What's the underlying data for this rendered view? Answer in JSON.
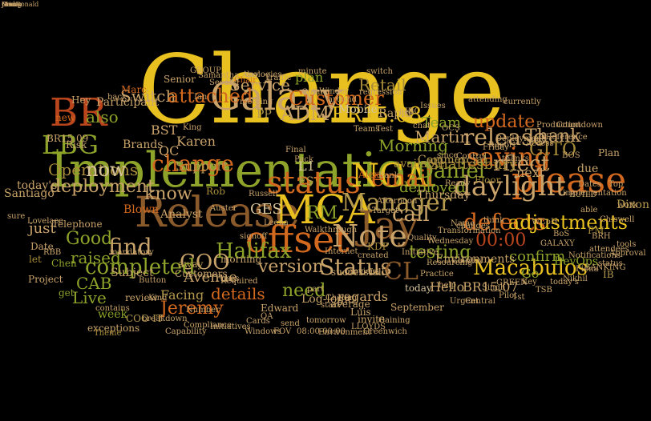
{
  "title": "",
  "palette": {
    "gold": "#e8c020",
    "orange": "#d2691e",
    "olive": "#8ea32a",
    "tan": "#c9a36a",
    "brown": "#8b5a2b",
    "rust": "#b8451c",
    "sand": "#b59a4e",
    "khaki": "#a88c3a",
    "darkred": "#a33a1a",
    "pale": "#d6c39a"
  },
  "words": [
    {
      "text": "Change",
      "color": "gold"
    },
    {
      "text": "Implementation",
      "color": "olive"
    },
    {
      "text": "Release",
      "color": "brown"
    },
    {
      "text": "Galaxy",
      "color": "tan"
    },
    {
      "text": "MCA",
      "color": "gold"
    },
    {
      "text": "please",
      "color": "orange"
    },
    {
      "text": "offset",
      "color": "orange"
    },
    {
      "text": "Jay",
      "color": "brown"
    },
    {
      "text": "daylight",
      "color": "tan"
    },
    {
      "text": "Note",
      "color": "tan"
    },
    {
      "text": "status",
      "color": "orange"
    },
    {
      "text": "Customer",
      "color": "orange"
    },
    {
      "text": "BR",
      "color": "rust"
    },
    {
      "text": "LBG",
      "color": "olive"
    },
    {
      "text": "NGA",
      "color": "gold"
    },
    {
      "text": "Status",
      "color": "tan"
    },
    {
      "text": "Service",
      "color": "tan"
    },
    {
      "text": "Switch",
      "color": "tan"
    },
    {
      "text": "version",
      "color": "tan"
    },
    {
      "text": "Retail",
      "color": "khaki"
    },
    {
      "text": "Manager",
      "color": "sand"
    },
    {
      "text": "saving",
      "color": "orange"
    },
    {
      "text": "defects",
      "color": "orange"
    },
    {
      "text": "email",
      "color": "orange"
    },
    {
      "text": "adjustments",
      "color": "gold"
    },
    {
      "text": "release",
      "color": "tan"
    },
    {
      "text": "rflect",
      "color": "tan"
    },
    {
      "text": "Daniel",
      "color": "olive"
    },
    {
      "text": "BR15.08",
      "color": "gold"
    },
    {
      "text": "ADM",
      "color": "tan"
    },
    {
      "text": "GITO",
      "color": "khaki"
    },
    {
      "text": "change",
      "color": "orange"
    },
    {
      "text": "Macabulos",
      "color": "gold"
    },
    {
      "text": "00:00",
      "color": "rust"
    },
    {
      "text": "Halifax",
      "color": "olive"
    },
    {
      "text": "COO",
      "color": "tan"
    },
    {
      "text": "completed",
      "color": "olive"
    },
    {
      "text": "testing",
      "color": "olive"
    },
    {
      "text": "CL",
      "color": "brown"
    },
    {
      "text": "GES",
      "color": "pale"
    },
    {
      "text": "deployment",
      "color": "tan"
    },
    {
      "text": "Operations",
      "color": "khaki"
    },
    {
      "text": "now",
      "color": "pale"
    },
    {
      "text": "attached",
      "color": "orange"
    },
    {
      "text": "Karen",
      "color": "tan"
    },
    {
      "text": "Thank",
      "color": "tan"
    },
    {
      "text": "update",
      "color": "orange"
    },
    {
      "text": "Team",
      "color": "olive"
    },
    {
      "text": "Morning",
      "color": "olive"
    },
    {
      "text": "Martin",
      "color": "tan"
    },
    {
      "text": "Shaftesbury",
      "color": "khaki"
    },
    {
      "text": "Commercial",
      "color": "sand"
    },
    {
      "text": "deployed",
      "color": "olive"
    },
    {
      "text": "available",
      "color": "khaki"
    },
    {
      "text": "call",
      "color": "tan"
    },
    {
      "text": "RM",
      "color": "olive"
    },
    {
      "text": "L1",
      "color": "pale"
    },
    {
      "text": "FS",
      "color": "sand"
    },
    {
      "text": "know",
      "color": "tan"
    },
    {
      "text": "find",
      "color": "tan"
    },
    {
      "text": "Good",
      "color": "olive"
    },
    {
      "text": "raised",
      "color": "olive"
    },
    {
      "text": "CAB",
      "color": "olive"
    },
    {
      "text": "Live",
      "color": "olive"
    },
    {
      "text": "just",
      "color": "tan"
    },
    {
      "text": "need",
      "color": "olive"
    },
    {
      "text": "details",
      "color": "orange"
    },
    {
      "text": "Jeremy",
      "color": "orange"
    },
    {
      "text": "Facing",
      "color": "sand"
    },
    {
      "text": "Log-logic",
      "color": "tan"
    },
    {
      "text": "regards",
      "color": "tan"
    },
    {
      "text": "confirm",
      "color": "olive"
    },
    {
      "text": "BR15.07",
      "color": "tan"
    },
    {
      "text": "Go",
      "color": "olive"
    },
    {
      "text": "DevOps",
      "color": "olive"
    },
    {
      "text": "next",
      "color": "tan"
    },
    {
      "text": "due",
      "color": "tan"
    },
    {
      "text": "Support",
      "color": "sand"
    },
    {
      "text": "QC",
      "color": "tan"
    },
    {
      "text": "BST",
      "color": "tan"
    },
    {
      "text": "also",
      "color": "olive"
    },
    {
      "text": "new",
      "color": "orange"
    },
    {
      "text": "today's",
      "color": "tan"
    },
    {
      "text": "Santiago",
      "color": "tan"
    },
    {
      "text": "Alex",
      "color": "orange"
    },
    {
      "text": "Mobile",
      "color": "pale"
    },
    {
      "text": "Rapid",
      "color": "tan"
    },
    {
      "text": "plan",
      "color": "olive"
    },
    {
      "text": "PP",
      "color": "sand"
    },
    {
      "text": "KDP",
      "color": "khaki"
    },
    {
      "text": "today",
      "color": "pale"
    },
    {
      "text": "Hello",
      "color": "tan"
    },
    {
      "text": "Analyst",
      "color": "tan"
    },
    {
      "text": "Avenue",
      "color": "tan"
    },
    {
      "text": "Blown",
      "color": "orange"
    },
    {
      "text": "Participant",
      "color": "tan"
    },
    {
      "text": "Telephone",
      "color": "tan"
    },
    {
      "text": "Subject",
      "color": "tan"
    },
    {
      "text": "get",
      "color": "olive"
    },
    {
      "text": "let",
      "color": "khaki"
    },
    {
      "text": "week",
      "color": "olive"
    },
    {
      "text": "Customers",
      "color": "tan"
    },
    {
      "text": "Thursday",
      "color": "tan"
    },
    {
      "text": "Environments",
      "color": "tan"
    },
    {
      "text": "Floor",
      "color": "khaki"
    },
    {
      "text": "Brands",
      "color": "tan"
    },
    {
      "text": "review",
      "color": "tan"
    },
    {
      "text": "Edward",
      "color": "tan"
    },
    {
      "text": "invite",
      "color": "tan"
    },
    {
      "text": "Dixon",
      "color": "sand"
    },
    {
      "text": "IB",
      "color": "sand"
    },
    {
      "text": "PM",
      "color": "khaki"
    },
    {
      "text": "Plan",
      "color": "tan"
    },
    {
      "text": "Hey",
      "color": "tan"
    },
    {
      "text": "Senior",
      "color": "tan"
    },
    {
      "text": "Marc",
      "color": "orange"
    },
    {
      "text": "Rob",
      "color": "khaki"
    },
    {
      "text": "Chen",
      "color": "olive"
    },
    {
      "text": "Project",
      "color": "tan"
    },
    {
      "text": "BR15.09",
      "color": "tan"
    },
    {
      "text": "Date",
      "color": "tan"
    },
    {
      "text": "Risk",
      "color": "tan"
    },
    {
      "text": "away",
      "color": "sand"
    },
    {
      "text": "Luis",
      "color": "tan"
    },
    {
      "text": "average",
      "color": "tan"
    },
    {
      "text": "September",
      "color": "tan"
    },
    {
      "text": "successfully",
      "color": "tan"
    },
    {
      "text": "morning",
      "color": "tan"
    },
    {
      "text": "exceptions",
      "color": "tan"
    },
    {
      "text": "COO-IT",
      "color": "sand"
    },
    {
      "text": "Theme",
      "color": "khaki"
    },
    {
      "text": "Initiatives",
      "color": "tan"
    },
    {
      "text": "Capability",
      "color": "tan"
    },
    {
      "text": "Compliance",
      "color": "tan"
    },
    {
      "text": "Number",
      "color": "tan"
    },
    {
      "text": "breakdown",
      "color": "tan"
    },
    {
      "text": "Kind",
      "color": "tan"
    },
    {
      "text": "Button",
      "color": "tan"
    },
    {
      "text": "Cheung",
      "color": "tan"
    },
    {
      "text": "LLOYDS",
      "color": "tan"
    },
    {
      "text": "King",
      "color": "tan"
    },
    {
      "text": "Chair",
      "color": "orange"
    },
    {
      "text": "day",
      "color": "tan"
    },
    {
      "text": "meeting",
      "color": "tan"
    },
    {
      "text": "Colin",
      "color": "tan"
    },
    {
      "text": "Second",
      "color": "tan"
    },
    {
      "text": "Winder",
      "color": "tan"
    },
    {
      "text": "regression",
      "color": "tan"
    },
    {
      "text": "switch",
      "color": "tan"
    },
    {
      "text": "last",
      "color": "tan"
    },
    {
      "text": "chat",
      "color": "tan"
    },
    {
      "text": "IBC",
      "color": "tan"
    },
    {
      "text": "OCS",
      "color": "tan"
    },
    {
      "text": "BOS",
      "color": "tan"
    },
    {
      "text": "Deployment",
      "color": "tan"
    },
    {
      "text": "currently",
      "color": "tan"
    },
    {
      "text": "Countdown",
      "color": "tan"
    },
    {
      "text": "since",
      "color": "tan"
    },
    {
      "text": "Issues",
      "color": "tan"
    },
    {
      "text": "attending",
      "color": "tan"
    },
    {
      "text": "thanks",
      "color": "tan"
    },
    {
      "text": "implementation",
      "color": "tan"
    },
    {
      "text": "Top",
      "color": "tan"
    },
    {
      "text": "work",
      "color": "tan"
    },
    {
      "text": "Chiswell",
      "color": "tan"
    },
    {
      "text": "BUILD",
      "color": "tan"
    },
    {
      "text": "GALAXY",
      "color": "tan"
    },
    {
      "text": "Notifications",
      "color": "tan"
    },
    {
      "text": "attendees",
      "color": "tan"
    },
    {
      "text": "changes",
      "color": "tan"
    },
    {
      "text": "Name",
      "color": "tan"
    },
    {
      "text": "Resourcing",
      "color": "tan"
    },
    {
      "text": "Practice",
      "color": "tan"
    },
    {
      "text": "help",
      "color": "tan"
    },
    {
      "text": "Singh",
      "color": "tan"
    },
    {
      "text": "GREEN",
      "color": "tan"
    },
    {
      "text": "RBB",
      "color": "tan"
    },
    {
      "text": "Lovelace",
      "color": "tan"
    },
    {
      "text": "sure",
      "color": "tan"
    },
    {
      "text": "mandatory",
      "color": "tan"
    },
    {
      "text": "contains",
      "color": "tan"
    },
    {
      "text": "Internet",
      "color": "tan"
    },
    {
      "text": "Walkthrough",
      "color": "tan"
    },
    {
      "text": "Leena",
      "color": "tan"
    },
    {
      "text": "Ian",
      "color": "tan"
    },
    {
      "text": "Samantha",
      "color": "tan"
    },
    {
      "text": "back",
      "color": "tan"
    },
    {
      "text": "tomorrow",
      "color": "tan"
    },
    {
      "text": "send",
      "color": "tan"
    },
    {
      "text": "previous",
      "color": "tan"
    },
    {
      "text": "created",
      "color": "tan"
    },
    {
      "text": "start",
      "color": "tan"
    },
    {
      "text": "part",
      "color": "tan"
    },
    {
      "text": "Fuses",
      "color": "tan"
    },
    {
      "text": "Russell",
      "color": "tan"
    },
    {
      "text": "Auster",
      "color": "tan"
    },
    {
      "text": "signoff",
      "color": "tan"
    },
    {
      "text": "WCoH",
      "color": "tan"
    },
    {
      "text": "BRH",
      "color": "tan"
    },
    {
      "text": "tools",
      "color": "tan"
    },
    {
      "text": "able",
      "color": "tan"
    },
    {
      "text": "think",
      "color": "tan"
    },
    {
      "text": "Gourley",
      "color": "tan"
    },
    {
      "text": "Wednesday",
      "color": "tan"
    },
    {
      "text": "Transformation",
      "color": "tan"
    },
    {
      "text": "Control",
      "color": "tan"
    },
    {
      "text": "Report",
      "color": "tan"
    },
    {
      "text": "Ready",
      "color": "tan"
    },
    {
      "text": "Friday",
      "color": "tan"
    },
    {
      "text": "Access",
      "color": "tan"
    },
    {
      "text": "Production",
      "color": "tan"
    },
    {
      "text": "Reference",
      "color": "tan"
    },
    {
      "text": "Dates",
      "color": "tan"
    },
    {
      "text": "BoS",
      "color": "tan"
    },
    {
      "text": "Key",
      "color": "tan"
    },
    {
      "text": "GROUP",
      "color": "tan"
    },
    {
      "text": "Hi",
      "color": "tan"
    },
    {
      "text": "Apologies",
      "color": "tan"
    },
    {
      "text": "Traffic",
      "color": "tan"
    },
    {
      "text": "minute",
      "color": "tan"
    },
    {
      "text": "around",
      "color": "tan"
    },
    {
      "text": "Quality",
      "color": "tan"
    },
    {
      "text": "Initiative",
      "color": "tan"
    },
    {
      "text": "Target",
      "color": "tan"
    },
    {
      "text": "Afternoon",
      "color": "tan"
    },
    {
      "text": "Bank",
      "color": "tan"
    },
    {
      "text": "Test",
      "color": "tan"
    },
    {
      "text": "Teams",
      "color": "tan"
    },
    {
      "text": "Pack",
      "color": "tan"
    },
    {
      "text": "Final",
      "color": "tan"
    },
    {
      "text": "Required",
      "color": "tan"
    },
    {
      "text": "Windows",
      "color": "tan"
    },
    {
      "text": "Cards",
      "color": "tan"
    },
    {
      "text": "QA",
      "color": "tan"
    },
    {
      "text": "FOV",
      "color": "tan"
    },
    {
      "text": "08:00-00:00",
      "color": "tan"
    },
    {
      "text": "Environment",
      "color": "tan"
    },
    {
      "text": "Greenwich",
      "color": "tan"
    },
    {
      "text": "Gaining",
      "color": "tan"
    },
    {
      "text": "Urgent",
      "color": "tan"
    },
    {
      "text": "Central",
      "color": "tan"
    },
    {
      "text": "Pilot",
      "color": "tan"
    },
    {
      "text": "1st",
      "color": "tan"
    },
    {
      "text": "TSB",
      "color": "tan"
    },
    {
      "text": "today's",
      "color": "tan"
    },
    {
      "text": "Nikhil",
      "color": "tan"
    },
    {
      "text": "Fiona",
      "color": "tan"
    },
    {
      "text": "BANKING",
      "color": "tan"
    },
    {
      "text": "status",
      "color": "tan"
    },
    {
      "text": "Approval",
      "color": "tan"
    },
    {
      "text": "Group",
      "color": "tan"
    },
    {
      "text": "Dear",
      "color": "tan"
    },
    {
      "text": "MacDonald",
      "color": "tan"
    },
    {
      "text": "James",
      "color": "tan"
    },
    {
      "text": "Friday",
      "color": "tan"
    }
  ]
}
